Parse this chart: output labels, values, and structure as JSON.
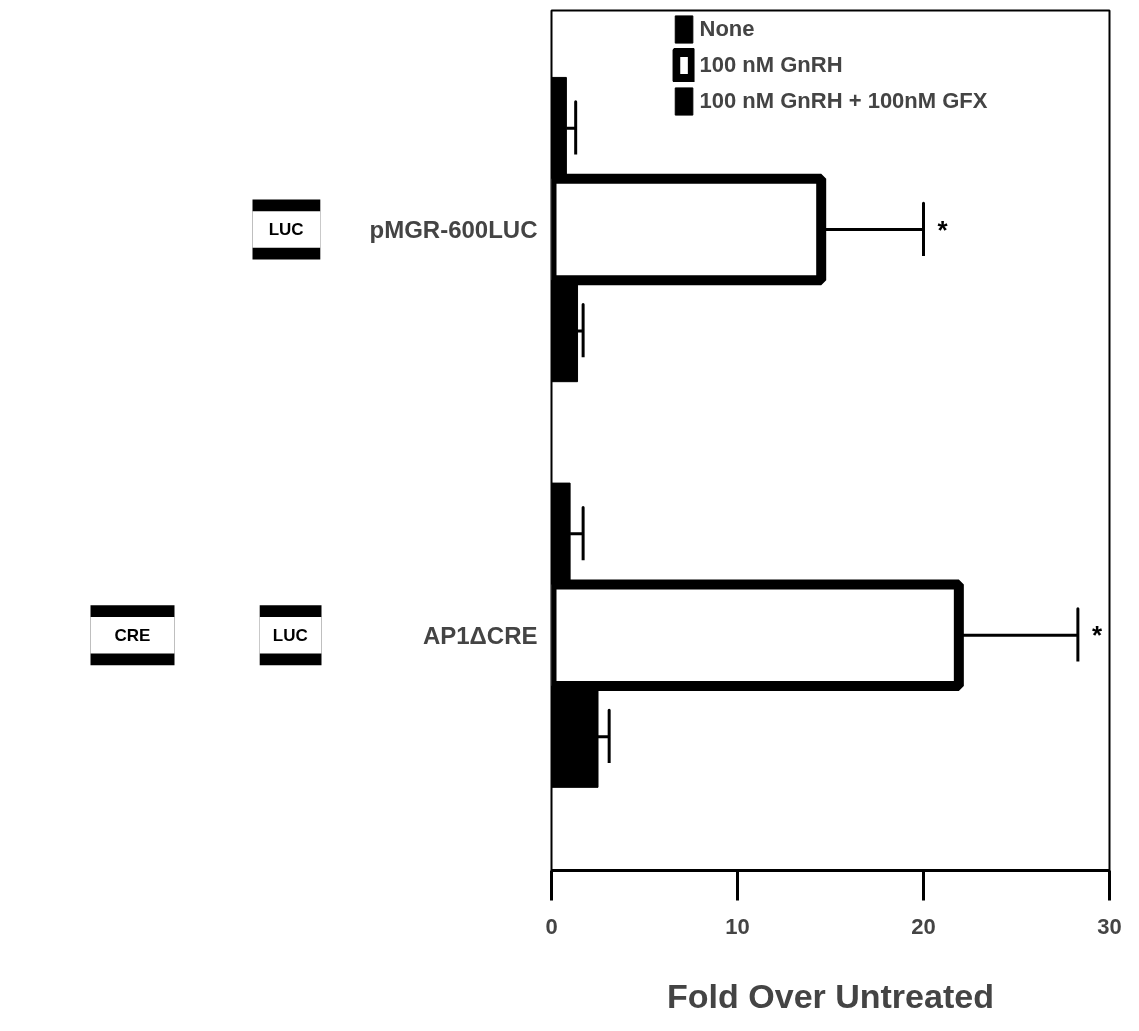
{
  "chart_data": {
    "type": "bar",
    "orientation": "horizontal",
    "xlabel": "Fold Over Untreated",
    "categories": [
      "pMGR-600LUC",
      "AP1ΔCRE"
    ],
    "series": [
      {
        "name": "None",
        "color": "#000000",
        "values": [
          0.8,
          1.0
        ],
        "errors": [
          [
            0.8,
            1.3
          ],
          [
            1.0,
            1.7
          ]
        ]
      },
      {
        "name": "100 nM GnRH",
        "color": "#ffffff",
        "values": [
          14.5,
          21.9
        ],
        "errors": [
          [
            14.5,
            20.0
          ],
          [
            21.9,
            28.3
          ]
        ]
      },
      {
        "name": "100 nM GnRH + 100nM GFX",
        "color": "#000000",
        "values": [
          1.4,
          2.5
        ],
        "errors": [
          [
            1.4,
            1.7
          ],
          [
            2.5,
            3.1
          ]
        ]
      }
    ],
    "xlim": [
      0,
      30
    ],
    "xticks": [
      0,
      10,
      20,
      30
    ],
    "legend": "top",
    "annotations": [
      "LUC",
      "CRE",
      "LUC",
      "*",
      "*"
    ]
  }
}
